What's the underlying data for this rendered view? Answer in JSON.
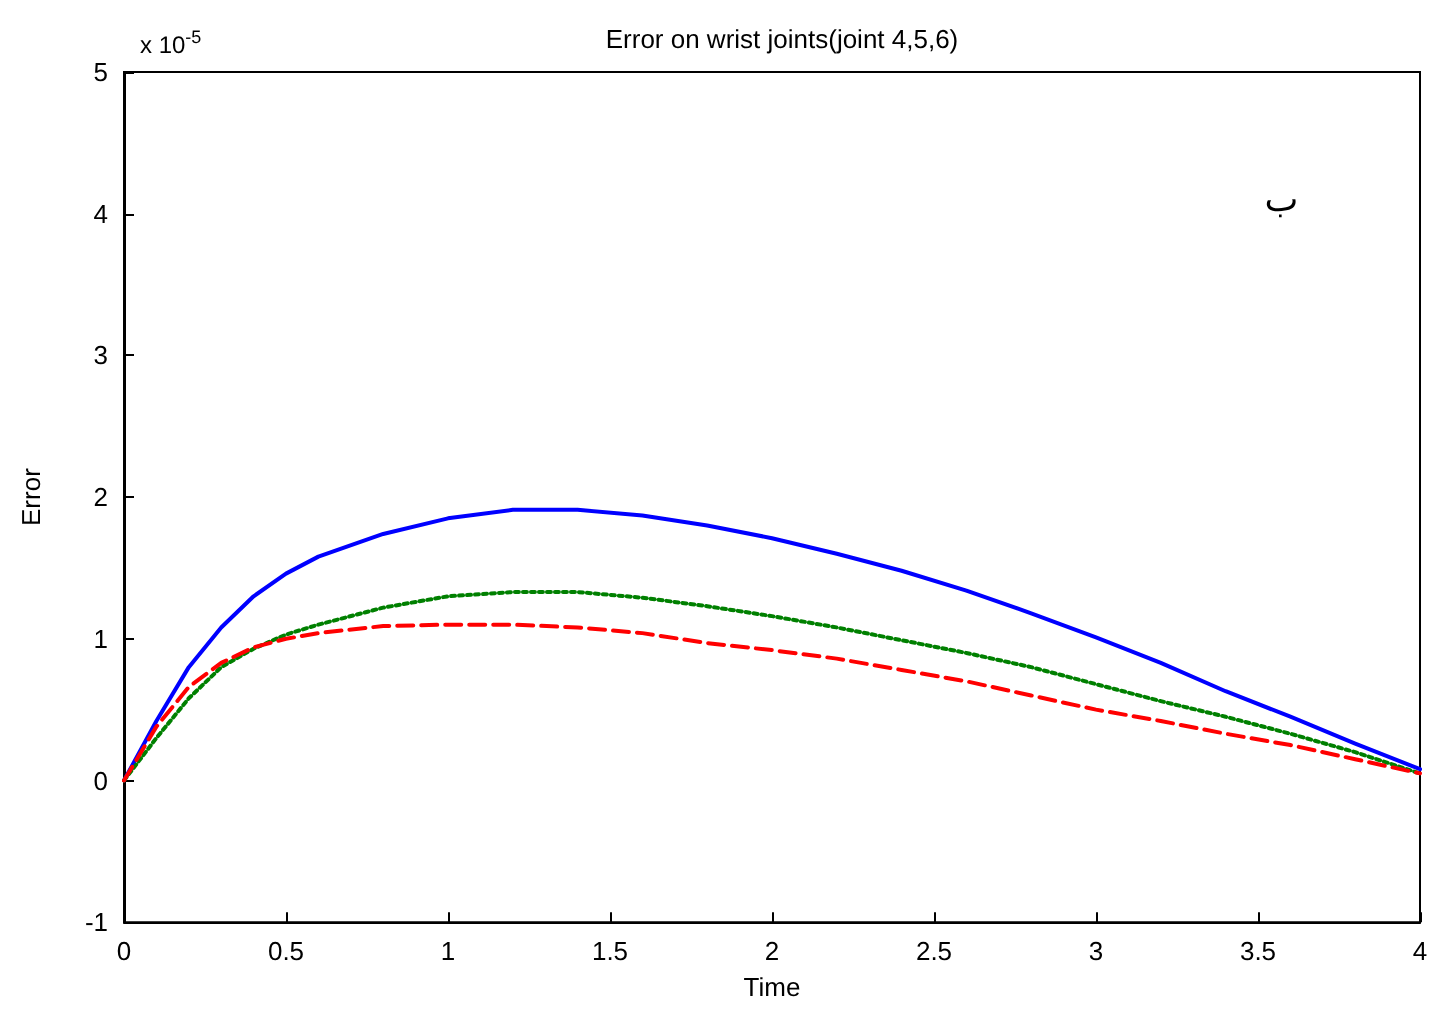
{
  "chart_data": {
    "type": "line",
    "title": "Error on wrist joints(joint 4,5,6)",
    "xlabel": "Time",
    "ylabel": "Error",
    "annotations": [
      "x 10$^{-5}$",
      "ب"
    ],
    "x": [
      0,
      0.1,
      0.2,
      0.3,
      0.4,
      0.5,
      0.6,
      0.8,
      1.0,
      1.2,
      1.4,
      1.6,
      1.8,
      2.0,
      2.2,
      2.4,
      2.6,
      2.8,
      3.0,
      3.2,
      3.4,
      3.6,
      3.8,
      4.0
    ],
    "series": [
      {
        "color": "#0000ff",
        "line_style": "solid",
        "values": [
          0,
          0.42,
          0.8,
          1.08,
          1.3,
          1.46,
          1.58,
          1.74,
          1.85,
          1.91,
          1.91,
          1.87,
          1.8,
          1.71,
          1.6,
          1.48,
          1.34,
          1.18,
          1.01,
          0.83,
          0.63,
          0.45,
          0.26,
          0.08
        ]
      },
      {
        "color": "#008000",
        "line_style": "dotted",
        "values": [
          0,
          0.3,
          0.58,
          0.8,
          0.93,
          1.03,
          1.1,
          1.22,
          1.3,
          1.33,
          1.33,
          1.29,
          1.23,
          1.16,
          1.08,
          0.99,
          0.9,
          0.8,
          0.68,
          0.56,
          0.45,
          0.33,
          0.2,
          0.05
        ]
      },
      {
        "color": "#ff0000",
        "line_style": "dashed",
        "values": [
          0,
          0.38,
          0.66,
          0.83,
          0.94,
          1.0,
          1.04,
          1.09,
          1.1,
          1.1,
          1.08,
          1.04,
          0.97,
          0.92,
          0.86,
          0.78,
          0.7,
          0.6,
          0.5,
          0.42,
          0.33,
          0.25,
          0.15,
          0.05
        ]
      }
    ],
    "xlim": [
      0,
      4
    ],
    "xticks": [
      0,
      0.5,
      1,
      1.5,
      2,
      2.5,
      3,
      3.5,
      4
    ],
    "ylim": [
      -1,
      5
    ],
    "yticks": [
      -1,
      0,
      1,
      2,
      3,
      4,
      5
    ],
    "grid": false,
    "marker": "none"
  }
}
